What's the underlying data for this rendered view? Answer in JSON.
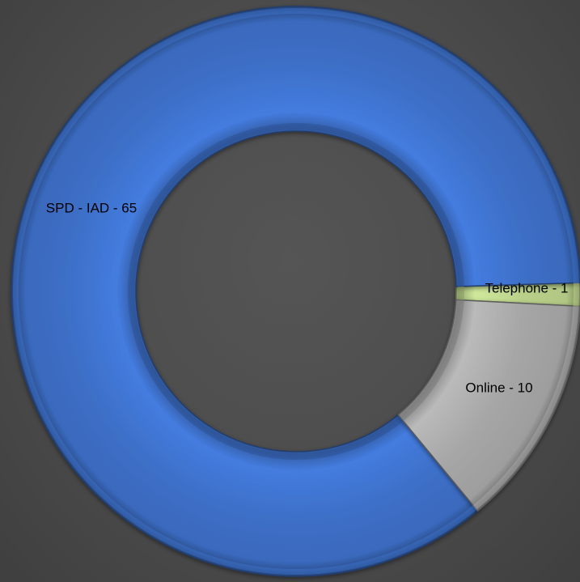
{
  "chart_data": {
    "type": "pie",
    "variant": "doughnut",
    "title": "",
    "start_angle_deg": -3,
    "direction": "counterclockwise",
    "slices": [
      {
        "label": "Telephone - 1",
        "value": 1,
        "color": "#b9d08a"
      },
      {
        "label": "SPD - IAD - 65",
        "value": 65,
        "color": "#3d6fc7"
      },
      {
        "label": "Online - 10",
        "value": 10,
        "color": "#a6a6a6"
      }
    ],
    "background": "#4b4b4b"
  }
}
